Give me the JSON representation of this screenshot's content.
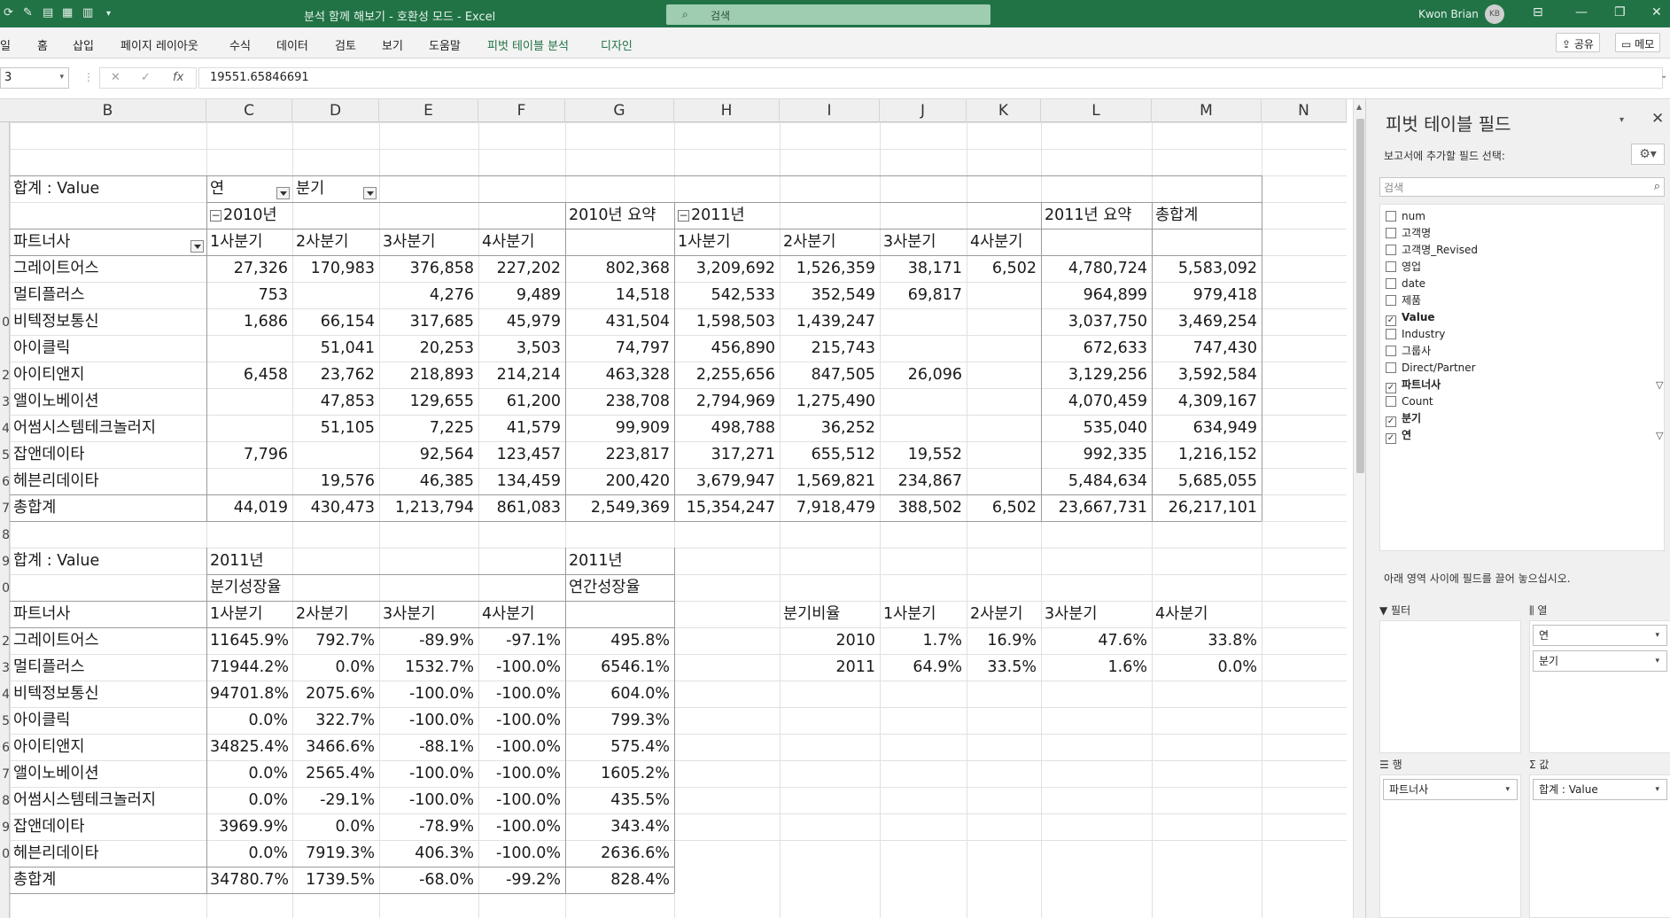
{
  "titlebar": {
    "title": "분석 함께 해보기  -  호환성 모드  -  Excel",
    "search_placeholder": "검색",
    "user": "Kwon Brian",
    "avatar": "KB"
  },
  "ribbon": {
    "tabs": [
      "일",
      "홈",
      "삽입",
      "페이지 레이아웃",
      "수식",
      "데이터",
      "검토",
      "보기",
      "도움말",
      "피벗 테이블 분석",
      "디자인"
    ],
    "share": "공유",
    "memo": "메모"
  },
  "formula_bar": {
    "name_box": "3",
    "value": "19551.65846691"
  },
  "columns": [
    "B",
    "C",
    "D",
    "E",
    "F",
    "G",
    "H",
    "I",
    "J",
    "K",
    "L",
    "M",
    "N"
  ],
  "row_headers": [
    "",
    "",
    "",
    "",
    "",
    "",
    "",
    "0",
    "",
    "2",
    "3",
    "4",
    "5",
    "6",
    "7",
    "8",
    "9",
    "0",
    "",
    "2",
    "3",
    "4",
    "5",
    "6",
    "7",
    "8",
    "9",
    "0"
  ],
  "pivot1": {
    "label": "합계 : Value",
    "col_field_year": "연",
    "col_field_quarter": "분기",
    "row_field": "파트너사",
    "year2010": "2010년",
    "year2010_total": "2010년 요약",
    "year2011": "2011년",
    "year2011_total": "2011년 요약",
    "grand_total": "총합계",
    "quarters": [
      "1사분기",
      "2사분기",
      "3사분기",
      "4사분기"
    ],
    "rows": [
      {
        "name": "그레이트어스",
        "v": [
          "27,326",
          "170,983",
          "376,858",
          "227,202",
          "802,368",
          "3,209,692",
          "1,526,359",
          "38,171",
          "6,502",
          "4,780,724",
          "5,583,092"
        ]
      },
      {
        "name": "멀티플러스",
        "v": [
          "753",
          "",
          "4,276",
          "9,489",
          "14,518",
          "542,533",
          "352,549",
          "69,817",
          "",
          "964,899",
          "979,418"
        ]
      },
      {
        "name": "비텍정보통신",
        "v": [
          "1,686",
          "66,154",
          "317,685",
          "45,979",
          "431,504",
          "1,598,503",
          "1,439,247",
          "",
          "",
          "3,037,750",
          "3,469,254"
        ]
      },
      {
        "name": "아이클릭",
        "v": [
          "",
          "51,041",
          "20,253",
          "3,503",
          "74,797",
          "456,890",
          "215,743",
          "",
          "",
          "672,633",
          "747,430"
        ]
      },
      {
        "name": "아이티앤지",
        "v": [
          "6,458",
          "23,762",
          "218,893",
          "214,214",
          "463,328",
          "2,255,656",
          "847,505",
          "26,096",
          "",
          "3,129,256",
          "3,592,584"
        ]
      },
      {
        "name": "앨이노베이션",
        "v": [
          "",
          "47,853",
          "129,655",
          "61,200",
          "238,708",
          "2,794,969",
          "1,275,490",
          "",
          "",
          "4,070,459",
          "4,309,167"
        ]
      },
      {
        "name": "어썸시스템테크놀러지",
        "v": [
          "",
          "51,105",
          "7,225",
          "41,579",
          "99,909",
          "498,788",
          "36,252",
          "",
          "",
          "535,040",
          "634,949"
        ]
      },
      {
        "name": "잡앤데이타",
        "v": [
          "7,796",
          "",
          "92,564",
          "123,457",
          "223,817",
          "317,271",
          "655,512",
          "19,552",
          "",
          "992,335",
          "1,216,152"
        ]
      },
      {
        "name": "헤븐리데이타",
        "v": [
          "",
          "19,576",
          "46,385",
          "134,459",
          "200,420",
          "3,679,947",
          "1,569,821",
          "234,867",
          "",
          "5,484,634",
          "5,685,055"
        ]
      },
      {
        "name": "총합계",
        "v": [
          "44,019",
          "430,473",
          "1,213,794",
          "861,083",
          "2,549,369",
          "15,354,247",
          "7,918,479",
          "388,502",
          "6,502",
          "23,667,731",
          "26,217,101"
        ]
      }
    ]
  },
  "pivot2": {
    "label": "합계 : Value",
    "year": "2011년",
    "year_g": "2011년",
    "sub_quarter": "분기성장율",
    "sub_annual": "연간성장율",
    "row_field": "파트너사",
    "quarters": [
      "1사분기",
      "2사분기",
      "3사분기",
      "4사분기"
    ],
    "rows": [
      {
        "name": "그레이트어스",
        "v": [
          "11645.9%",
          "792.7%",
          "-89.9%",
          "-97.1%",
          "495.8%"
        ]
      },
      {
        "name": "멀티플러스",
        "v": [
          "71944.2%",
          "0.0%",
          "1532.7%",
          "-100.0%",
          "6546.1%"
        ]
      },
      {
        "name": "비텍정보통신",
        "v": [
          "94701.8%",
          "2075.6%",
          "-100.0%",
          "-100.0%",
          "604.0%"
        ]
      },
      {
        "name": "아이클릭",
        "v": [
          "0.0%",
          "322.7%",
          "-100.0%",
          "-100.0%",
          "799.3%"
        ]
      },
      {
        "name": "아이티앤지",
        "v": [
          "34825.4%",
          "3466.6%",
          "-88.1%",
          "-100.0%",
          "575.4%"
        ]
      },
      {
        "name": "앨이노베이션",
        "v": [
          "0.0%",
          "2565.4%",
          "-100.0%",
          "-100.0%",
          "1605.2%"
        ]
      },
      {
        "name": "어썸시스템테크놀러지",
        "v": [
          "0.0%",
          "-29.1%",
          "-100.0%",
          "-100.0%",
          "435.5%"
        ]
      },
      {
        "name": "잡앤데이타",
        "v": [
          "3969.9%",
          "0.0%",
          "-78.9%",
          "-100.0%",
          "343.4%"
        ]
      },
      {
        "name": "헤븐리데이타",
        "v": [
          "0.0%",
          "7919.3%",
          "406.3%",
          "-100.0%",
          "2636.6%"
        ]
      },
      {
        "name": "총합계",
        "v": [
          "34780.7%",
          "1739.5%",
          "-68.0%",
          "-99.2%",
          "828.4%"
        ]
      }
    ]
  },
  "ratio": {
    "label": "분기비율",
    "quarters": [
      "1사분기",
      "2사분기",
      "3사분기",
      "4사분기"
    ],
    "rows": [
      {
        "year": "2010",
        "v": [
          "1.7%",
          "16.9%",
          "47.6%",
          "33.8%"
        ]
      },
      {
        "year": "2011",
        "v": [
          "64.9%",
          "33.5%",
          "1.6%",
          "0.0%"
        ]
      }
    ]
  },
  "pivot_panel": {
    "title": "피벗 테이블 필드",
    "subtitle": "보고서에 추가할 필드 선택:",
    "search_placeholder": "검색",
    "fields": [
      {
        "name": "num",
        "checked": false,
        "filter": false
      },
      {
        "name": "고객명",
        "checked": false,
        "filter": false
      },
      {
        "name": "고객명_Revised",
        "checked": false,
        "filter": false
      },
      {
        "name": "영업",
        "checked": false,
        "filter": false
      },
      {
        "name": "date",
        "checked": false,
        "filter": false
      },
      {
        "name": "제품",
        "checked": false,
        "filter": false
      },
      {
        "name": "Value",
        "checked": true,
        "filter": false
      },
      {
        "name": "Industry",
        "checked": false,
        "filter": false
      },
      {
        "name": "그룹사",
        "checked": false,
        "filter": false
      },
      {
        "name": "Direct/Partner",
        "checked": false,
        "filter": false
      },
      {
        "name": "파트너사",
        "checked": true,
        "filter": true
      },
      {
        "name": "Count",
        "checked": false,
        "filter": false
      },
      {
        "name": "분기",
        "checked": true,
        "filter": false
      },
      {
        "name": "연",
        "checked": true,
        "filter": true
      }
    ],
    "drag_hint": "아래 영역 사이에 필드를 끌어 놓으십시오.",
    "areas": {
      "filter": {
        "label": "필터",
        "items": []
      },
      "columns": {
        "label": "열",
        "items": [
          "연",
          "분기"
        ]
      },
      "rows": {
        "label": "행",
        "items": [
          "파트너사"
        ]
      },
      "values": {
        "label": "값",
        "items": [
          "합계 : Value"
        ]
      }
    }
  }
}
